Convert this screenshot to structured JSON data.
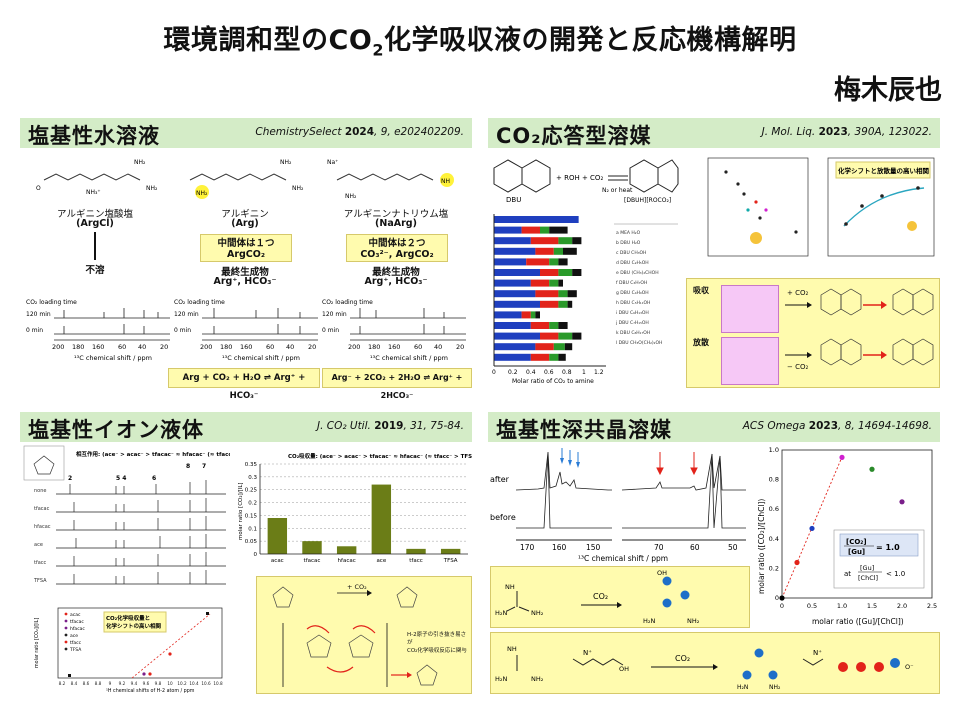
{
  "header": {
    "title_a": "環境調和型のCO",
    "title_sub": "2",
    "title_b": "化学吸収液の開発と反応機構解明",
    "author": "梅木辰也"
  },
  "panels": [
    {
      "heading": "塩基性水溶液",
      "ref_journal": "ChemistrySelect",
      "ref_year": "2024",
      "ref_rest": ", 9, e202402209."
    },
    {
      "heading": "CO₂応答型溶媒",
      "ref_journal": "J. Mol. Liq.",
      "ref_year": "2023",
      "ref_rest": ", 390A, 123022."
    },
    {
      "heading": "塩基性イオン液体",
      "ref_journal": "J. CO₂ Util.",
      "ref_year": "2019",
      "ref_rest": ", 31, 75-84."
    },
    {
      "heading": "塩基性深共晶溶媒",
      "ref_journal": "ACS Omega",
      "ref_year": "2023",
      "ref_rest": ", 8, 14694-14698."
    }
  ],
  "p1": {
    "col1_name": "アルギニン塩酸塩",
    "col1_abbr": "(ArgCl)",
    "col1_result": "不溶",
    "col2_name": "アルギニン",
    "col2_abbr": "(Arg)",
    "col2_box1": "中間体は１つ",
    "col2_box2": "ArgCO₂",
    "col2_final1": "最終生成物",
    "col2_final2": "Arg⁺, HCO₃⁻",
    "col3_name": "アルギニンナトリウム塩",
    "col3_abbr": "(NaArg)",
    "col3_box1": "中間体は２つ",
    "col3_box2": "CO₃²⁻, ArgCO₂",
    "col3_final1": "最終生成物",
    "col3_final2": "Arg⁺, HCO₃⁻",
    "nmr_title": "CO₂ loading time",
    "t120": "120 min",
    "t0": "0 min",
    "axis_ticks": [
      "200",
      "180",
      "160",
      "60",
      "40",
      "20"
    ],
    "axis_label": "¹³C chemical shift / ppm",
    "eq2": "Arg + CO₂ + H₂O ⇌ Arg⁺ + HCO₃⁻",
    "eq3": "Arg⁻ + 2CO₂ + 2H₂O ⇌ Arg⁺ + 2HCO₃⁻"
  },
  "p2": {
    "dbu": "DBU",
    "plus": "+ ROH + CO₂",
    "cond": "N₂ or heat",
    "prod": "[DBUH][ROCO₂]",
    "bar_axis": "Molar ratio of CO₂ to amine",
    "bar_ticks": [
      "0",
      "0.2",
      "0.4",
      "0.6",
      "0.8",
      "1",
      "1.2"
    ],
    "scatter_label": "化学シフトと放散量の高い相関",
    "absorb": "吸収",
    "release": "放散",
    "co2_plus": "+ CO₂",
    "co2_minus": "− CO₂"
  },
  "p3": {
    "interact": "相互作用: (ace⁻ > acac⁻ > tfacac⁻ ≈ hfacac⁻ (≈ tfacc⁻ > TFSA⁻)",
    "nmr_rows": [
      "none",
      "tfacac",
      "hfacac",
      "ace",
      "tfacc",
      "TFSA"
    ],
    "nmr_peaks": [
      "2",
      "5 4",
      "6",
      "8",
      "7"
    ],
    "chart_title": "CO₂吸収量: (ace⁻ > acac⁻ > tfacac⁻ ≈ hfacac⁻ (≈ tfacc⁻ > TFSA⁻)",
    "scatter_box1": "CO₂化学吸収量と",
    "scatter_box2": "化学シフトの高い相関",
    "scatter_legend": [
      "acac",
      "tfacac",
      "hfacac",
      "ace",
      "tfacc",
      "TFSA"
    ],
    "scatter_xlabel": "¹H chemical shifts of H-2 atom / ppm",
    "scatter_ylabel": "molar ratio [CO₂]/[IL]",
    "scatter_xticks": [
      "8.2",
      "8.4",
      "8.6",
      "8.8",
      "9",
      "9.2",
      "9.4",
      "9.6",
      "9.8",
      "10",
      "10.2",
      "10.4",
      "10.6",
      "10.8"
    ],
    "mech_co2": "+ CO₂",
    "mech_note1": "H-2原子の引き抜き易さが",
    "mech_note2": "CO₂化学吸収反応に関与"
  },
  "p4": {
    "after": "after",
    "before": "before",
    "axis_ticks": [
      "170",
      "160",
      "150",
      "70",
      "60",
      "50"
    ],
    "axis_label": "¹³C chemical shift / ppm",
    "scatter_xlabel": "molar ratio ([Gu]/[ChCl])",
    "scatter_ylabel": "molar ratio ([CO₂]/[ChCl])",
    "scatter_xticks": [
      "0",
      "0.5",
      "1.0",
      "1.5",
      "2.0",
      "2.5"
    ],
    "scatter_yticks": [
      "0",
      "0.2",
      "0.4",
      "0.6",
      "0.8",
      "1.0"
    ],
    "ratio_text": "= 1.0",
    "co2": "CO₂"
  },
  "chart_data": [
    {
      "type": "bar",
      "title": "CO₂吸収量: (ace⁻ > acac⁻ > tfacac⁻ ≈ hfacac⁻ (≈ tfacc⁻ > TFSA⁻)",
      "categories": [
        "acac",
        "tfacac",
        "hfacac",
        "ace",
        "tfacc",
        "TFSA"
      ],
      "values": [
        0.14,
        0.05,
        0.03,
        0.27,
        0.02,
        0.02
      ],
      "ylabel": "molar ratio [CO₂]/[IL]",
      "ylim": [
        0,
        0.35
      ],
      "yticks": [
        "0",
        "0.05",
        "0.1",
        "0.15",
        "0.2",
        "0.25",
        "0.3",
        "0.35"
      ],
      "color": "#6b7d17"
    },
    {
      "type": "scatter",
      "title": "",
      "xlabel": "molar ratio ([Gu]/[ChCl])",
      "ylabel": "molar ratio ([CO₂]/[ChCl])",
      "xlim": [
        0,
        2.5
      ],
      "ylim": [
        0,
        1.0
      ],
      "points": [
        {
          "x": 0.0,
          "y": 0.0,
          "color": "#000000"
        },
        {
          "x": 0.25,
          "y": 0.24,
          "color": "#e2231a"
        },
        {
          "x": 0.5,
          "y": 0.47,
          "color": "#1f3fbf"
        },
        {
          "x": 1.0,
          "y": 0.95,
          "color": "#d020d0"
        },
        {
          "x": 1.5,
          "y": 0.87,
          "color": "#2a8a2a"
        },
        {
          "x": 2.0,
          "y": 0.65,
          "color": "#7a1f8a"
        }
      ]
    }
  ]
}
